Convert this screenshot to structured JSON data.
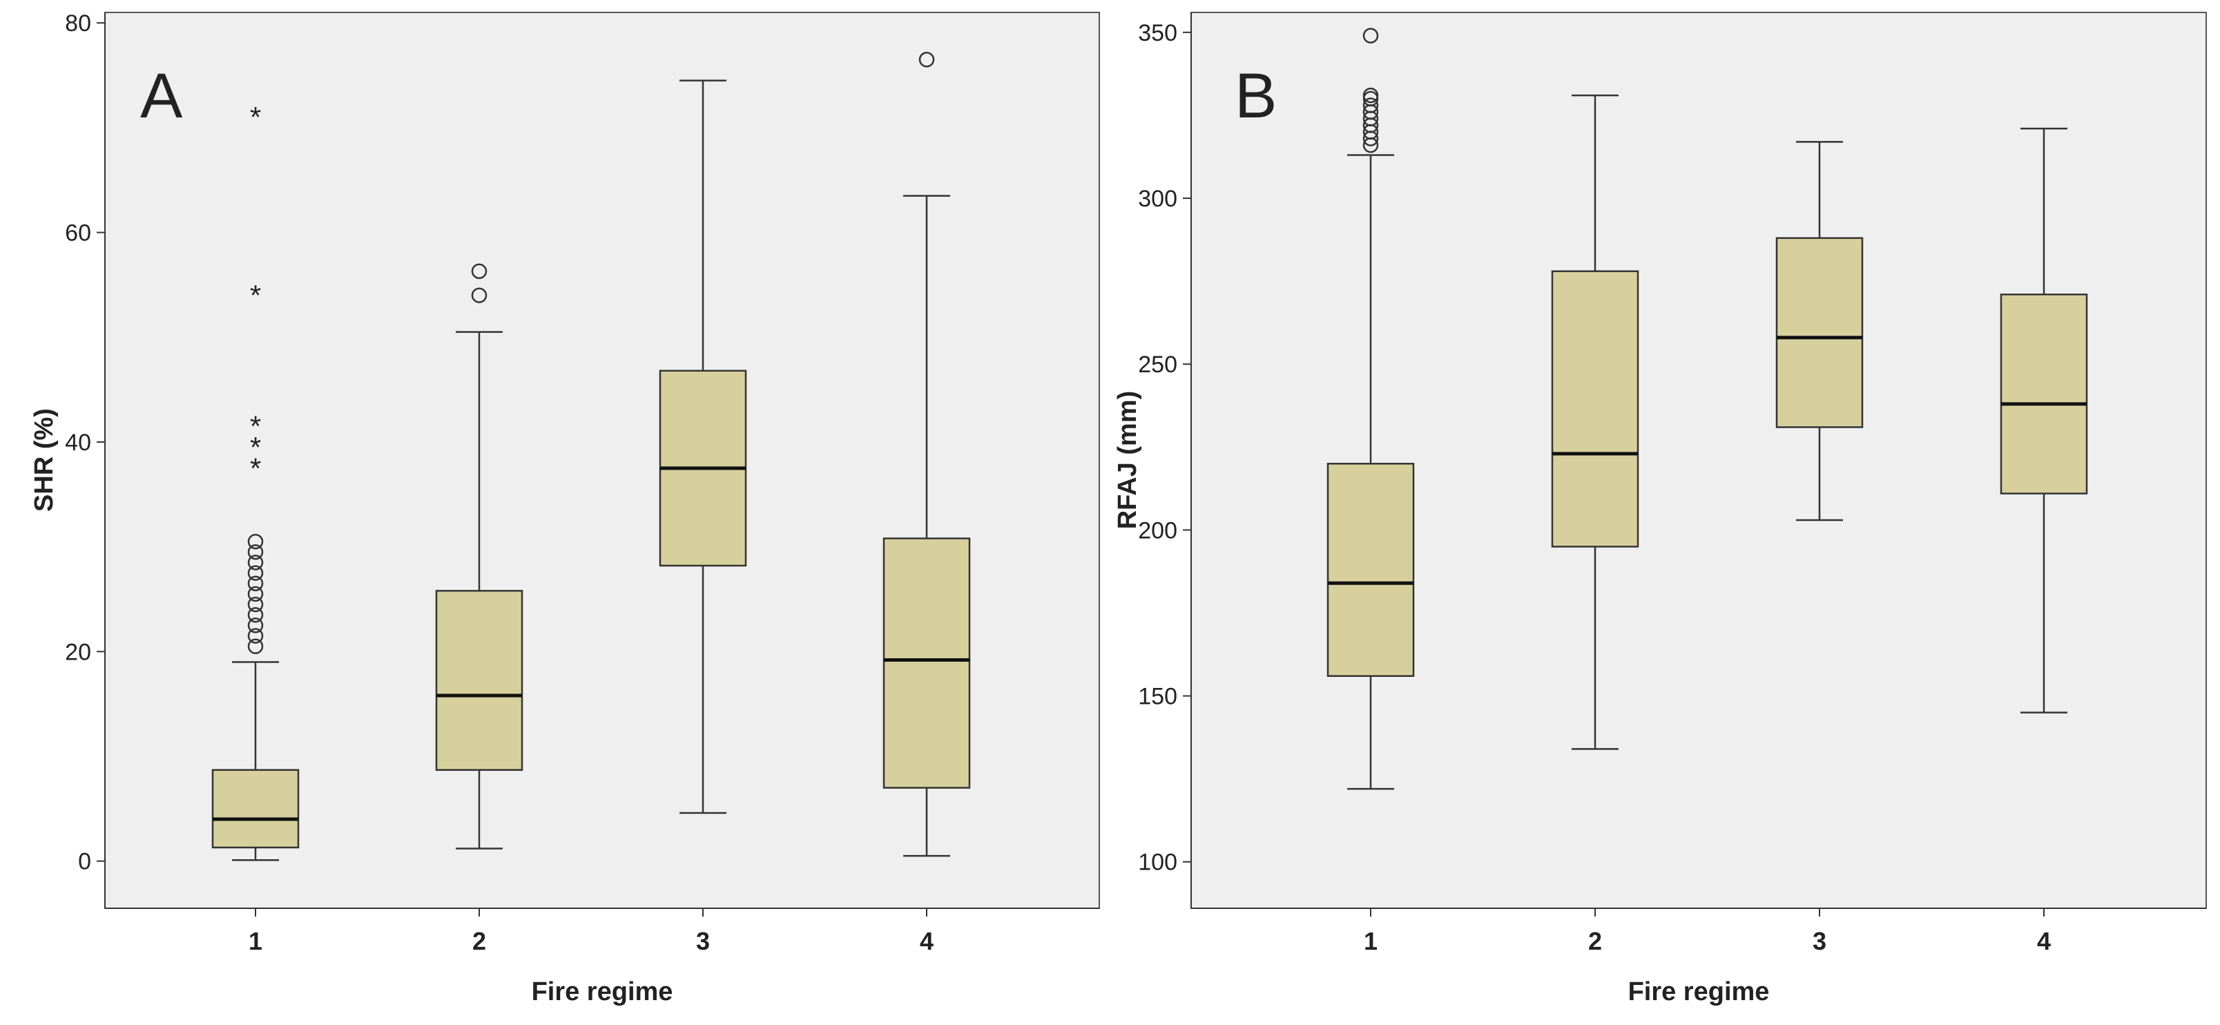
{
  "figure": {
    "background_color": "#ffffff"
  },
  "style": {
    "plot_bg": "#efefef",
    "box_fill": "#d8d09c",
    "line_color": "#333333",
    "median_color": "#111111"
  },
  "chart_data": [
    {
      "type": "boxplot",
      "panel_label": "A",
      "title": "",
      "xlabel": "Fire regime",
      "ylabel": "SHR (%)",
      "ylim": [
        -4.5,
        81
      ],
      "yticks": [
        0,
        20,
        40,
        60,
        80
      ],
      "categories": [
        "1",
        "2",
        "3",
        "4"
      ],
      "boxes": [
        {
          "category": "1",
          "whisker_low": 0.1,
          "q1": 1.3,
          "median": 4,
          "q3": 8.7,
          "whisker_high": 19,
          "outliers": [
            20.5,
            21.5,
            22.5,
            23.5,
            24.5,
            25.5,
            26.5,
            27.5,
            28.5,
            29.5,
            30.5
          ],
          "extremes": [
            38,
            40,
            42,
            54.5,
            71.5
          ]
        },
        {
          "category": "2",
          "whisker_low": 1.2,
          "q1": 8.7,
          "median": 15.8,
          "q3": 25.8,
          "whisker_high": 50.5,
          "outliers": [
            54,
            56.3
          ],
          "extremes": []
        },
        {
          "category": "3",
          "whisker_low": 4.6,
          "q1": 28.2,
          "median": 37.5,
          "q3": 46.8,
          "whisker_high": 74.5,
          "outliers": [],
          "extremes": []
        },
        {
          "category": "4",
          "whisker_low": 0.5,
          "q1": 7,
          "median": 19.2,
          "q3": 30.8,
          "whisker_high": 63.5,
          "outliers": [
            76.5
          ],
          "extremes": []
        }
      ]
    },
    {
      "type": "boxplot",
      "panel_label": "B",
      "title": "",
      "xlabel": "Fire regime",
      "ylabel": "RFAJ (mm)",
      "ylim": [
        86,
        356
      ],
      "yticks": [
        100,
        150,
        200,
        250,
        300,
        350
      ],
      "categories": [
        "1",
        "2",
        "3",
        "4"
      ],
      "boxes": [
        {
          "category": "1",
          "whisker_low": 122,
          "q1": 156,
          "median": 184,
          "q3": 220,
          "whisker_high": 313,
          "outliers": [
            316,
            318,
            320,
            322,
            324,
            326,
            328,
            330,
            331,
            349
          ],
          "extremes": []
        },
        {
          "category": "2",
          "whisker_low": 134,
          "q1": 195,
          "median": 223,
          "q3": 278,
          "whisker_high": 331,
          "outliers": [],
          "extremes": []
        },
        {
          "category": "3",
          "whisker_low": 203,
          "q1": 231,
          "median": 258,
          "q3": 288,
          "whisker_high": 317,
          "outliers": [],
          "extremes": []
        },
        {
          "category": "4",
          "whisker_low": 145,
          "q1": 211,
          "median": 238,
          "q3": 271,
          "whisker_high": 321,
          "outliers": [],
          "extremes": []
        }
      ]
    }
  ]
}
